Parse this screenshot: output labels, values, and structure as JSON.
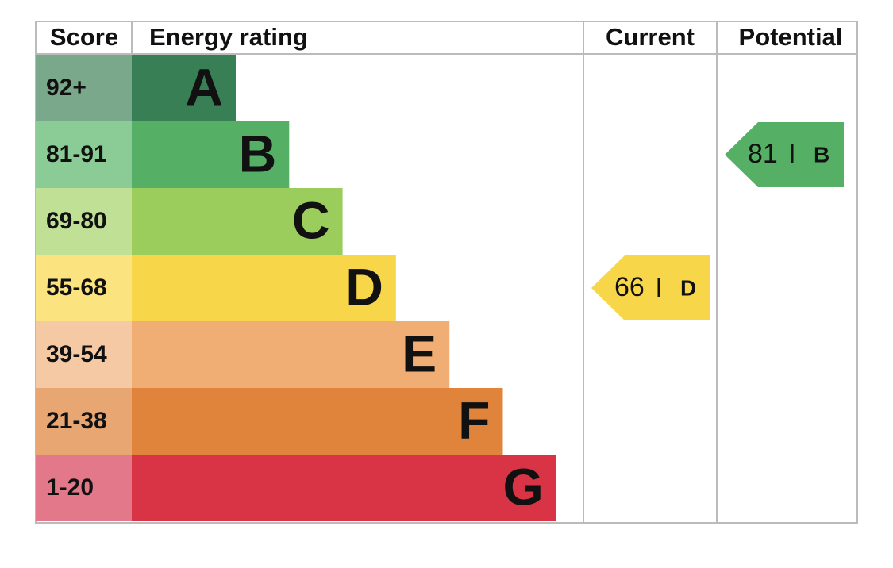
{
  "header": {
    "score": "Score",
    "energy_rating": "Energy rating",
    "current": "Current",
    "potential": "Potential"
  },
  "rows": [
    {
      "score": "92+",
      "band": "A",
      "color": "#387f55",
      "score_color": "#7aa88b"
    },
    {
      "score": "81-91",
      "band": "B",
      "color": "#55b066",
      "score_color": "#8bcb95"
    },
    {
      "score": "69-80",
      "band": "C",
      "color": "#9bcd5d",
      "score_color": "#c0e096"
    },
    {
      "score": "55-68",
      "band": "D",
      "color": "#f8d64a",
      "score_color": "#fbe37f"
    },
    {
      "score": "39-54",
      "band": "E",
      "color": "#f0ad74",
      "score_color": "#f5c9a4"
    },
    {
      "score": "21-38",
      "band": "F",
      "color": "#e0843b",
      "score_color": "#e8a672"
    },
    {
      "score": "1-20",
      "band": "G",
      "color": "#d93446",
      "score_color": "#e27889"
    }
  ],
  "current": {
    "value": 66,
    "band": "D"
  },
  "potential": {
    "value": 81,
    "band": "B"
  }
}
